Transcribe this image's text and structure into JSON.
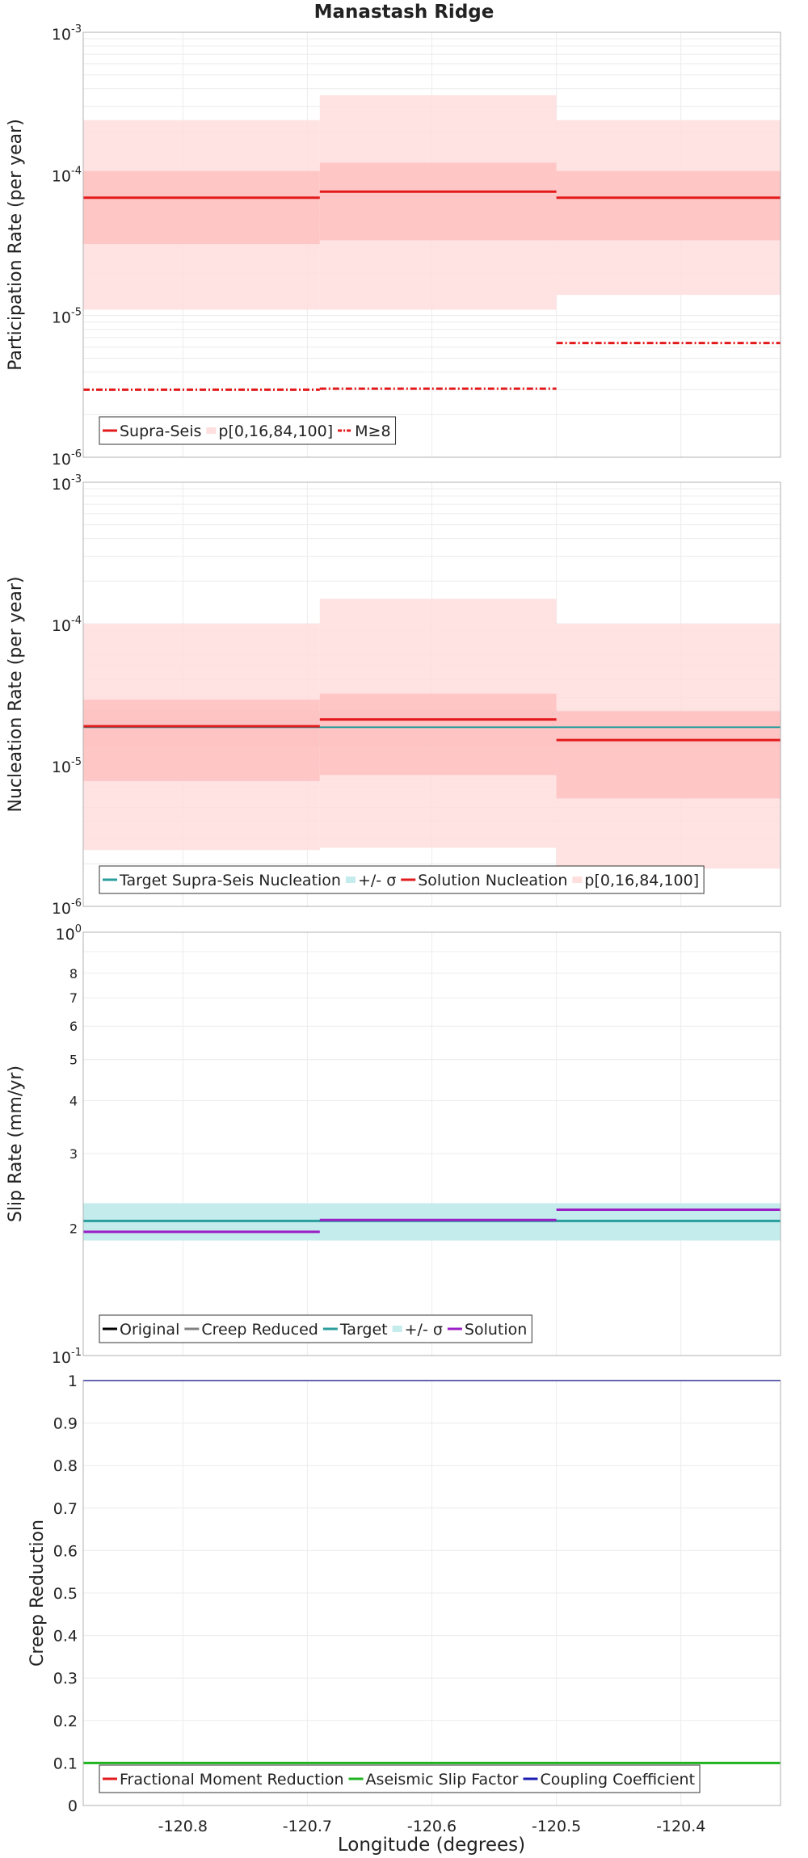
{
  "title": "Manastash Ridge",
  "xlabel": "Longitude (degrees)",
  "xticks": [
    "-120.8",
    "-120.7",
    "-120.6",
    "-120.5",
    "-120.4"
  ],
  "colors": {
    "red": "#e31a1c",
    "band_light": "#ffdede",
    "band_dark": "#ffbcbc",
    "target_teal": "#2a9d9d",
    "target_band": "#c4ecec",
    "gray_band": "#c9bcbc",
    "purple": "#9b1fc4",
    "green": "#1fb31f",
    "blue": "#1c1cb0",
    "black": "#000000",
    "gray": "#808080"
  },
  "chart_data": [
    {
      "type": "line",
      "name": "participation",
      "scale": "log",
      "ylabel": "Participation Rate (per year)",
      "ylim": [
        1e-06,
        0.001
      ],
      "xlim": [
        -120.88,
        -120.32
      ],
      "grid": true,
      "y_tick_labels": [
        {
          "base": "10",
          "exp": "-6",
          "v": 1e-06
        },
        {
          "base": "10",
          "exp": "-5",
          "v": 1e-05
        },
        {
          "base": "10",
          "exp": "-4",
          "v": 0.0001
        },
        {
          "base": "10",
          "exp": "-3",
          "v": 0.001
        }
      ],
      "legend_position": "bottom-left",
      "legend": [
        {
          "label": "Supra-Seis",
          "kind": "line",
          "color": "#e31a1c"
        },
        {
          "label": "p[0,16,84,100]",
          "kind": "patch",
          "color": "#ffdede"
        },
        {
          "label": "M≥8",
          "kind": "dashdot",
          "color": "#e31a1c"
        }
      ],
      "segments": [
        {
          "x": [
            -120.88,
            -120.69
          ],
          "mean": 6.8e-05,
          "p0": 1.1e-05,
          "p16": 3.2e-05,
          "p84": 0.000105,
          "p100": 0.00024,
          "m8": 3e-06
        },
        {
          "x": [
            -120.69,
            -120.5
          ],
          "mean": 7.5e-05,
          "p0": 1.1e-05,
          "p16": 3.4e-05,
          "p84": 0.00012,
          "p100": 0.00036,
          "m8": 3.05e-06
        },
        {
          "x": [
            -120.5,
            -120.32
          ],
          "mean": 6.8e-05,
          "p0": 1.4e-05,
          "p16": 3.4e-05,
          "p84": 0.000105,
          "p100": 0.00024,
          "m8": 6.4e-06
        }
      ]
    },
    {
      "type": "line",
      "name": "nucleation",
      "scale": "log",
      "ylabel": "Nucleation Rate (per year)",
      "ylim": [
        1e-06,
        0.001
      ],
      "xlim": [
        -120.88,
        -120.32
      ],
      "grid": true,
      "y_tick_labels": [
        {
          "base": "10",
          "exp": "-6",
          "v": 1e-06
        },
        {
          "base": "10",
          "exp": "-5",
          "v": 1e-05
        },
        {
          "base": "10",
          "exp": "-4",
          "v": 0.0001
        },
        {
          "base": "10",
          "exp": "-3",
          "v": 0.001
        }
      ],
      "legend_position": "bottom-left",
      "legend": [
        {
          "label": "Target Supra-Seis Nucleation",
          "kind": "line",
          "color": "#2a9d9d"
        },
        {
          "label": "+/- σ",
          "kind": "patch",
          "color": "#c4ecec"
        },
        {
          "label": "Solution Nucleation",
          "kind": "line",
          "color": "#e31a1c"
        },
        {
          "label": "p[0,16,84,100]",
          "kind": "patch",
          "color": "#ffdede"
        }
      ],
      "target": {
        "value": 1.85e-05,
        "lo": 1.35e-05,
        "hi": 2.45e-05
      },
      "segments": [
        {
          "x": [
            -120.88,
            -120.69
          ],
          "mean": 1.88e-05,
          "p0": 2.5e-06,
          "p16": 7.7e-06,
          "p84": 2.9e-05,
          "p100": 0.0001
        },
        {
          "x": [
            -120.69,
            -120.5
          ],
          "mean": 2.1e-05,
          "p0": 2.6e-06,
          "p16": 8.5e-06,
          "p84": 3.2e-05,
          "p100": 0.00015
        },
        {
          "x": [
            -120.5,
            -120.32
          ],
          "mean": 1.5e-05,
          "p0": 1.85e-06,
          "p16": 5.8e-06,
          "p84": 2.4e-05,
          "p100": 0.0001
        }
      ]
    },
    {
      "type": "line",
      "name": "slip",
      "scale": "log",
      "ylabel": "Slip Rate (mm/yr)",
      "ylim": [
        0.1,
        1
      ],
      "xlim": [
        -120.88,
        -120.32
      ],
      "grid": true,
      "y_tick_labels": [
        {
          "base": "10",
          "exp": "-1",
          "v": 0.1
        },
        {
          "base": "10",
          "exp": "0",
          "v": 1
        }
      ],
      "y_minor_labels": [
        {
          "t": "2",
          "v": 0.2
        },
        {
          "t": "3",
          "v": 0.3
        },
        {
          "t": "4",
          "v": 0.4
        },
        {
          "t": "5",
          "v": 0.5
        },
        {
          "t": "6",
          "v": 0.6
        },
        {
          "t": "7",
          "v": 0.7
        },
        {
          "t": "8",
          "v": 0.8
        }
      ],
      "legend_position": "bottom-left",
      "legend": [
        {
          "label": "Original",
          "kind": "line",
          "color": "#000000"
        },
        {
          "label": "Creep Reduced",
          "kind": "line",
          "color": "#808080"
        },
        {
          "label": "Target",
          "kind": "line",
          "color": "#2a9d9d"
        },
        {
          "label": "+/- σ",
          "kind": "patch",
          "color": "#c4ecec"
        },
        {
          "label": "Solution",
          "kind": "line",
          "color": "#9b1fc4"
        }
      ],
      "target": {
        "value": 0.208,
        "lo": 0.187,
        "hi": 0.229
      },
      "solution": [
        {
          "x": [
            -120.88,
            -120.69
          ],
          "value": 0.196
        },
        {
          "x": [
            -120.69,
            -120.5
          ],
          "value": 0.209
        },
        {
          "x": [
            -120.5,
            -120.32
          ],
          "value": 0.221
        }
      ]
    },
    {
      "type": "line",
      "name": "creep",
      "scale": "linear",
      "ylabel": "Creep Reduction",
      "ylim": [
        0,
        1
      ],
      "xlim": [
        -120.88,
        -120.32
      ],
      "grid": true,
      "y_ticks": [
        "0",
        "0.1",
        "0.2",
        "0.3",
        "0.4",
        "0.5",
        "0.6",
        "0.7",
        "0.8",
        "0.9",
        "1"
      ],
      "legend_position": "bottom-left",
      "legend": [
        {
          "label": "Fractional Moment Reduction",
          "kind": "line",
          "color": "#e31a1c"
        },
        {
          "label": "Aseismic Slip Factor",
          "kind": "line",
          "color": "#1fb31f"
        },
        {
          "label": "Coupling Coefficient",
          "kind": "line",
          "color": "#1c1cb0"
        }
      ],
      "aseismic_slip_factor": 0.1,
      "coupling_coefficient": 1.0
    }
  ]
}
